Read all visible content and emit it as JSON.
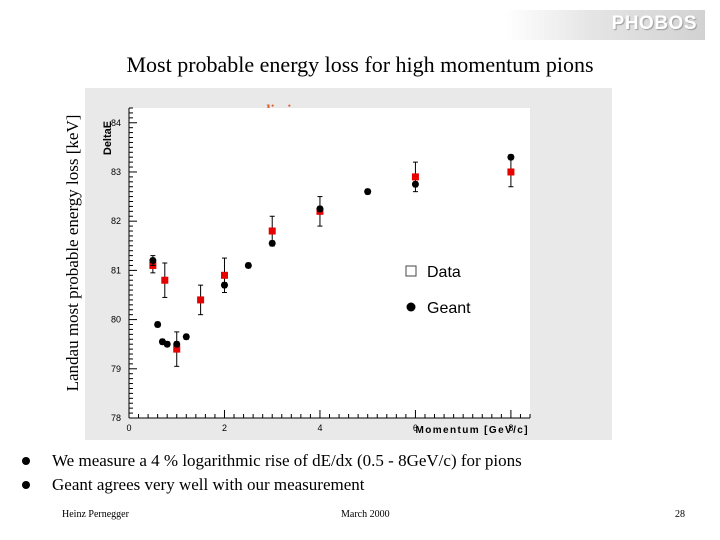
{
  "logo": "PHOBOS",
  "slide_title": "Most probable energy loss for high momentum pions",
  "y_outer_label": "Landau most probable energy loss [keV]",
  "chart_data": {
    "type": "scatter",
    "annotation": "preliminary",
    "xlabel": "Momentum [GeV/c]",
    "ylabel": "DeltaE",
    "xlim": [
      0,
      8.4
    ],
    "ylim": [
      78,
      84.3
    ],
    "xticks": [
      0,
      2,
      4,
      6,
      8
    ],
    "yticks": [
      78,
      79,
      80,
      81,
      82,
      83,
      84
    ],
    "legend_position": "right",
    "series": [
      {
        "name": "Data",
        "marker": "square",
        "color": "#e60000",
        "points": [
          {
            "x": 0.5,
            "y": 81.1,
            "err": 0.15
          },
          {
            "x": 0.75,
            "y": 80.8,
            "err": 0.35
          },
          {
            "x": 1.0,
            "y": 79.4,
            "err": 0.35
          },
          {
            "x": 1.5,
            "y": 80.4,
            "err": 0.3
          },
          {
            "x": 2.0,
            "y": 80.9,
            "err": 0.35
          },
          {
            "x": 3.0,
            "y": 81.8,
            "err": 0.3
          },
          {
            "x": 4.0,
            "y": 82.2,
            "err": 0.3
          },
          {
            "x": 6.0,
            "y": 82.9,
            "err": 0.3
          },
          {
            "x": 8.0,
            "y": 83.0,
            "err": 0.3
          }
        ]
      },
      {
        "name": "Geant",
        "marker": "circle",
        "color": "#000000",
        "points": [
          {
            "x": 0.5,
            "y": 81.2,
            "err": 0.1
          },
          {
            "x": 0.6,
            "y": 79.9,
            "err": 0.05
          },
          {
            "x": 0.7,
            "y": 79.55,
            "err": 0.05
          },
          {
            "x": 0.8,
            "y": 79.5,
            "err": 0.05
          },
          {
            "x": 1.0,
            "y": 79.5,
            "err": 0.05
          },
          {
            "x": 1.2,
            "y": 79.65,
            "err": 0.05
          },
          {
            "x": 2.0,
            "y": 80.7,
            "err": 0.05
          },
          {
            "x": 2.5,
            "y": 81.1,
            "err": 0.05
          },
          {
            "x": 3.0,
            "y": 81.55,
            "err": 0.05
          },
          {
            "x": 4.0,
            "y": 82.25,
            "err": 0.05
          },
          {
            "x": 5.0,
            "y": 82.6,
            "err": 0.05
          },
          {
            "x": 6.0,
            "y": 82.75,
            "err": 0.05
          },
          {
            "x": 8.0,
            "y": 83.3,
            "err": 0.05
          }
        ]
      }
    ]
  },
  "bullets": [
    "We measure a 4 % logarithmic rise of dE/dx (0.5 - 8GeV/c) for pions",
    "Geant agrees very well with our measurement"
  ],
  "footer": {
    "author": "Heinz Pernegger",
    "date": "March 2000",
    "page": "28"
  }
}
